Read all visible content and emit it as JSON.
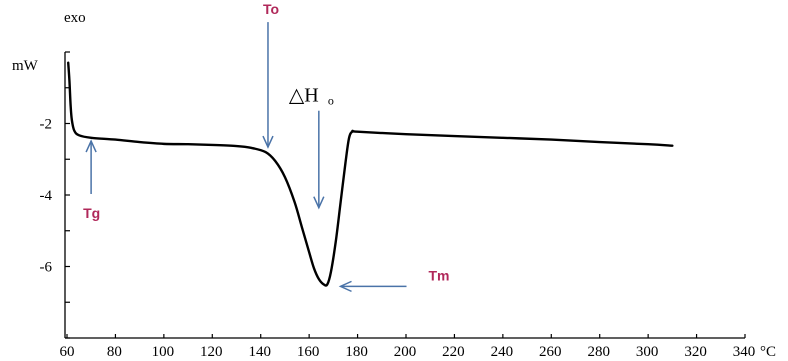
{
  "chart_data": {
    "type": "line",
    "title": "",
    "xlabel": "°C",
    "ylabel": "mW",
    "y_direction_label": "exo",
    "xlim": [
      60,
      340
    ],
    "ylim": [
      -8,
      0
    ],
    "xticks": [
      60,
      80,
      100,
      120,
      140,
      160,
      180,
      200,
      220,
      240,
      260,
      280,
      300,
      320,
      340
    ],
    "yticks": [
      -2,
      -4,
      -6
    ],
    "series": [
      {
        "line_color": "#000000",
        "points": [
          [
            60.5,
            -0.3
          ],
          [
            61,
            -0.8
          ],
          [
            61.5,
            -1.5
          ],
          [
            62,
            -1.9
          ],
          [
            63,
            -2.2
          ],
          [
            65,
            -2.33
          ],
          [
            70,
            -2.4
          ],
          [
            80,
            -2.45
          ],
          [
            90,
            -2.52
          ],
          [
            100,
            -2.57
          ],
          [
            110,
            -2.58
          ],
          [
            120,
            -2.6
          ],
          [
            130,
            -2.63
          ],
          [
            136,
            -2.68
          ],
          [
            142,
            -2.8
          ],
          [
            146,
            -3.05
          ],
          [
            150,
            -3.5
          ],
          [
            154,
            -4.2
          ],
          [
            157,
            -4.9
          ],
          [
            160,
            -5.6
          ],
          [
            162,
            -6.05
          ],
          [
            164,
            -6.35
          ],
          [
            166,
            -6.5
          ],
          [
            167.5,
            -6.5
          ],
          [
            169,
            -6.15
          ],
          [
            171,
            -5.3
          ],
          [
            173,
            -4.2
          ],
          [
            175,
            -3.1
          ],
          [
            176.5,
            -2.4
          ],
          [
            178,
            -2.22
          ],
          [
            180,
            -2.23
          ],
          [
            200,
            -2.3
          ],
          [
            220,
            -2.35
          ],
          [
            240,
            -2.4
          ],
          [
            260,
            -2.45
          ],
          [
            280,
            -2.52
          ],
          [
            300,
            -2.58
          ],
          [
            310,
            -2.62
          ]
        ]
      }
    ],
    "annotations": [
      {
        "name": "tg",
        "text": "Tg",
        "x": 65,
        "y": -2.35,
        "arrow": "up"
      },
      {
        "name": "to",
        "text": "To",
        "x": 143,
        "y": -2.8,
        "arrow": "down"
      },
      {
        "name": "dh",
        "text": "△H",
        "sub": "o",
        "x": 164,
        "y": -4.3,
        "arrow": "down"
      },
      {
        "name": "tm",
        "text": "Tm",
        "x": 168,
        "y": -6.5,
        "arrow": "left"
      }
    ],
    "colors": {
      "curve": "#000000",
      "arrow": "#4a73a8",
      "marker_text": "#b0285a",
      "axis": "#000000"
    }
  }
}
